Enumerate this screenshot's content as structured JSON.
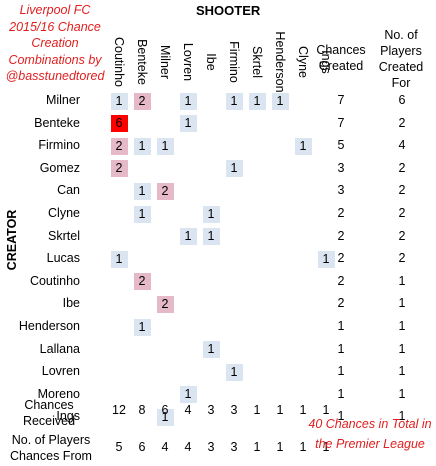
{
  "title_lines": [
    "Liverpool FC",
    "2015/16 Chance",
    "Creation",
    "Combinations by",
    "@basstunedtored"
  ],
  "shooter_axis_label": "SHOOTER",
  "creator_axis_label": "CREATOR",
  "column_header_created": [
    "Chances",
    "Created"
  ],
  "column_header_players": [
    "No. of",
    "Players",
    "Created",
    "For"
  ],
  "footer_received_label": [
    "Chances",
    "Received"
  ],
  "footer_from_label": [
    "No. of Players",
    "Chances From"
  ],
  "total_note": [
    "40 Chances in Total in",
    "the Premier League"
  ],
  "colors": {
    "low": "#dbe5f1",
    "mid": "#e6b9c8",
    "high": "#ff0000",
    "title_red": "#e02020"
  },
  "chart_data": {
    "type": "heatmap",
    "shooters": [
      "Coutinho",
      "Benteke",
      "Milner",
      "Lovren",
      "Ibe",
      "Firmino",
      "Skrtel",
      "Henderson",
      "Clyne",
      "Ings"
    ],
    "creators": [
      "Milner",
      "Benteke",
      "Firmino",
      "Gomez",
      "Can",
      "Clyne",
      "Skrtel",
      "Lucas",
      "Coutinho",
      "Ibe",
      "Henderson",
      "Lallana",
      "Lovren",
      "Moreno",
      "Ings"
    ],
    "matrix": [
      [
        1,
        2,
        0,
        1,
        0,
        1,
        1,
        1,
        0,
        0
      ],
      [
        6,
        0,
        0,
        1,
        0,
        0,
        0,
        0,
        0,
        0
      ],
      [
        2,
        1,
        1,
        0,
        0,
        0,
        0,
        0,
        1,
        0
      ],
      [
        2,
        0,
        0,
        0,
        0,
        1,
        0,
        0,
        0,
        0
      ],
      [
        0,
        1,
        2,
        0,
        0,
        0,
        0,
        0,
        0,
        0
      ],
      [
        0,
        1,
        0,
        0,
        1,
        0,
        0,
        0,
        0,
        0
      ],
      [
        0,
        0,
        0,
        1,
        1,
        0,
        0,
        0,
        0,
        0
      ],
      [
        1,
        0,
        0,
        0,
        0,
        0,
        0,
        0,
        0,
        1
      ],
      [
        0,
        2,
        0,
        0,
        0,
        0,
        0,
        0,
        0,
        0
      ],
      [
        0,
        0,
        2,
        0,
        0,
        0,
        0,
        0,
        0,
        0
      ],
      [
        0,
        1,
        0,
        0,
        0,
        0,
        0,
        0,
        0,
        0
      ],
      [
        0,
        0,
        0,
        0,
        1,
        0,
        0,
        0,
        0,
        0
      ],
      [
        0,
        0,
        0,
        0,
        0,
        1,
        0,
        0,
        0,
        0
      ],
      [
        0,
        0,
        0,
        1,
        0,
        0,
        0,
        0,
        0,
        0
      ],
      [
        0,
        0,
        1,
        0,
        0,
        0,
        0,
        0,
        0,
        0
      ]
    ],
    "chances_created": [
      7,
      7,
      5,
      3,
      3,
      2,
      2,
      2,
      2,
      2,
      1,
      1,
      1,
      1,
      1
    ],
    "players_created_for": [
      6,
      2,
      4,
      2,
      2,
      2,
      2,
      2,
      1,
      1,
      1,
      1,
      1,
      1,
      1
    ],
    "chances_received": [
      12,
      8,
      6,
      4,
      3,
      3,
      1,
      1,
      1,
      1
    ],
    "players_chances_from": [
      5,
      6,
      4,
      4,
      3,
      3,
      1,
      1,
      1,
      1
    ]
  }
}
